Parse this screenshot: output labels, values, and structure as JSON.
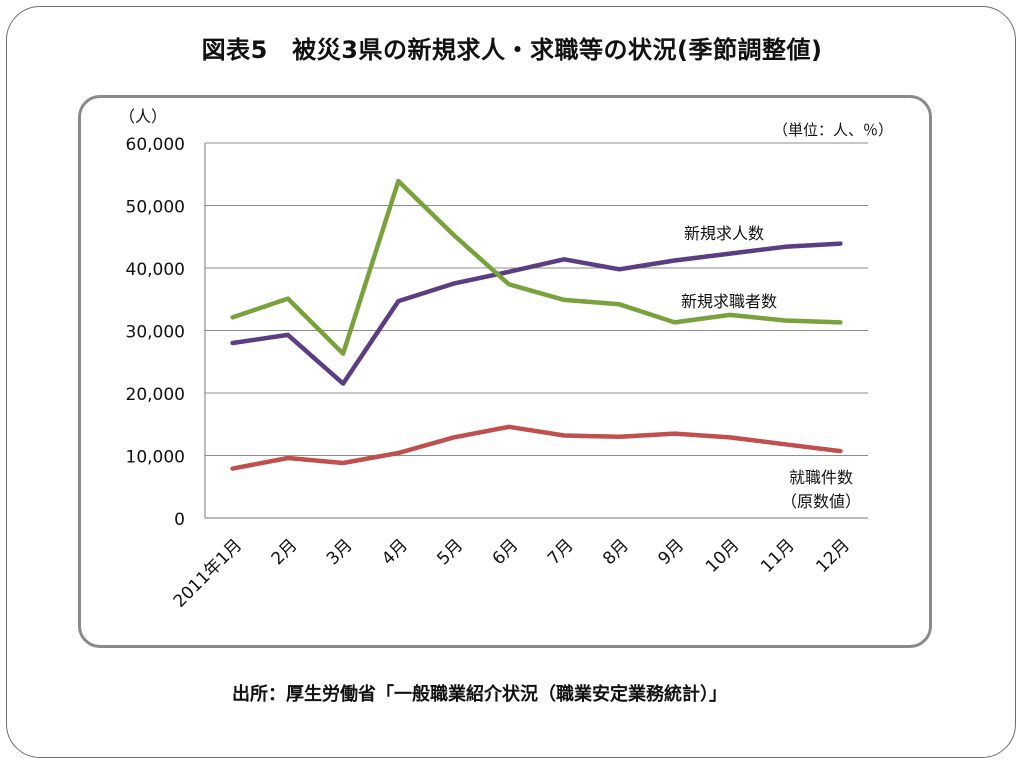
{
  "title": "図表5　被災3県の新規求人・求職等の状況(季節調整値)",
  "source": "出所：厚生労働省「一般職業紹介状況（職業安定業務統計）」",
  "chart_data": {
    "type": "line",
    "y_unit_label": "（人）",
    "unit_note": "（単位：人、％）",
    "categories": [
      "2011年1月",
      "2月",
      "3月",
      "4月",
      "5月",
      "6月",
      "7月",
      "8月",
      "9月",
      "10月",
      "11月",
      "12月"
    ],
    "ylim": [
      0,
      60000
    ],
    "yticks": [
      0,
      10000,
      20000,
      30000,
      40000,
      50000,
      60000
    ],
    "ytick_labels": [
      "0",
      "10,000",
      "20,000",
      "30,000",
      "40,000",
      "50,000",
      "60,000"
    ],
    "grid": true,
    "series": [
      {
        "name": "新規求人数",
        "color": "#5b3d82",
        "values": [
          28000,
          29300,
          21500,
          34700,
          37500,
          39400,
          41400,
          39800,
          41200,
          42300,
          43400,
          43900
        ]
      },
      {
        "name": "新規求職者数",
        "color": "#7aa23c",
        "values": [
          32100,
          35100,
          26300,
          53900,
          45300,
          37400,
          34900,
          34200,
          31300,
          32500,
          31600,
          31300
        ]
      },
      {
        "name": "就職件数\n（原数値）",
        "color": "#c0504d",
        "values": [
          7900,
          9600,
          8800,
          10400,
          12900,
          14600,
          13200,
          13000,
          13500,
          12900,
          11800,
          10700
        ]
      }
    ]
  }
}
